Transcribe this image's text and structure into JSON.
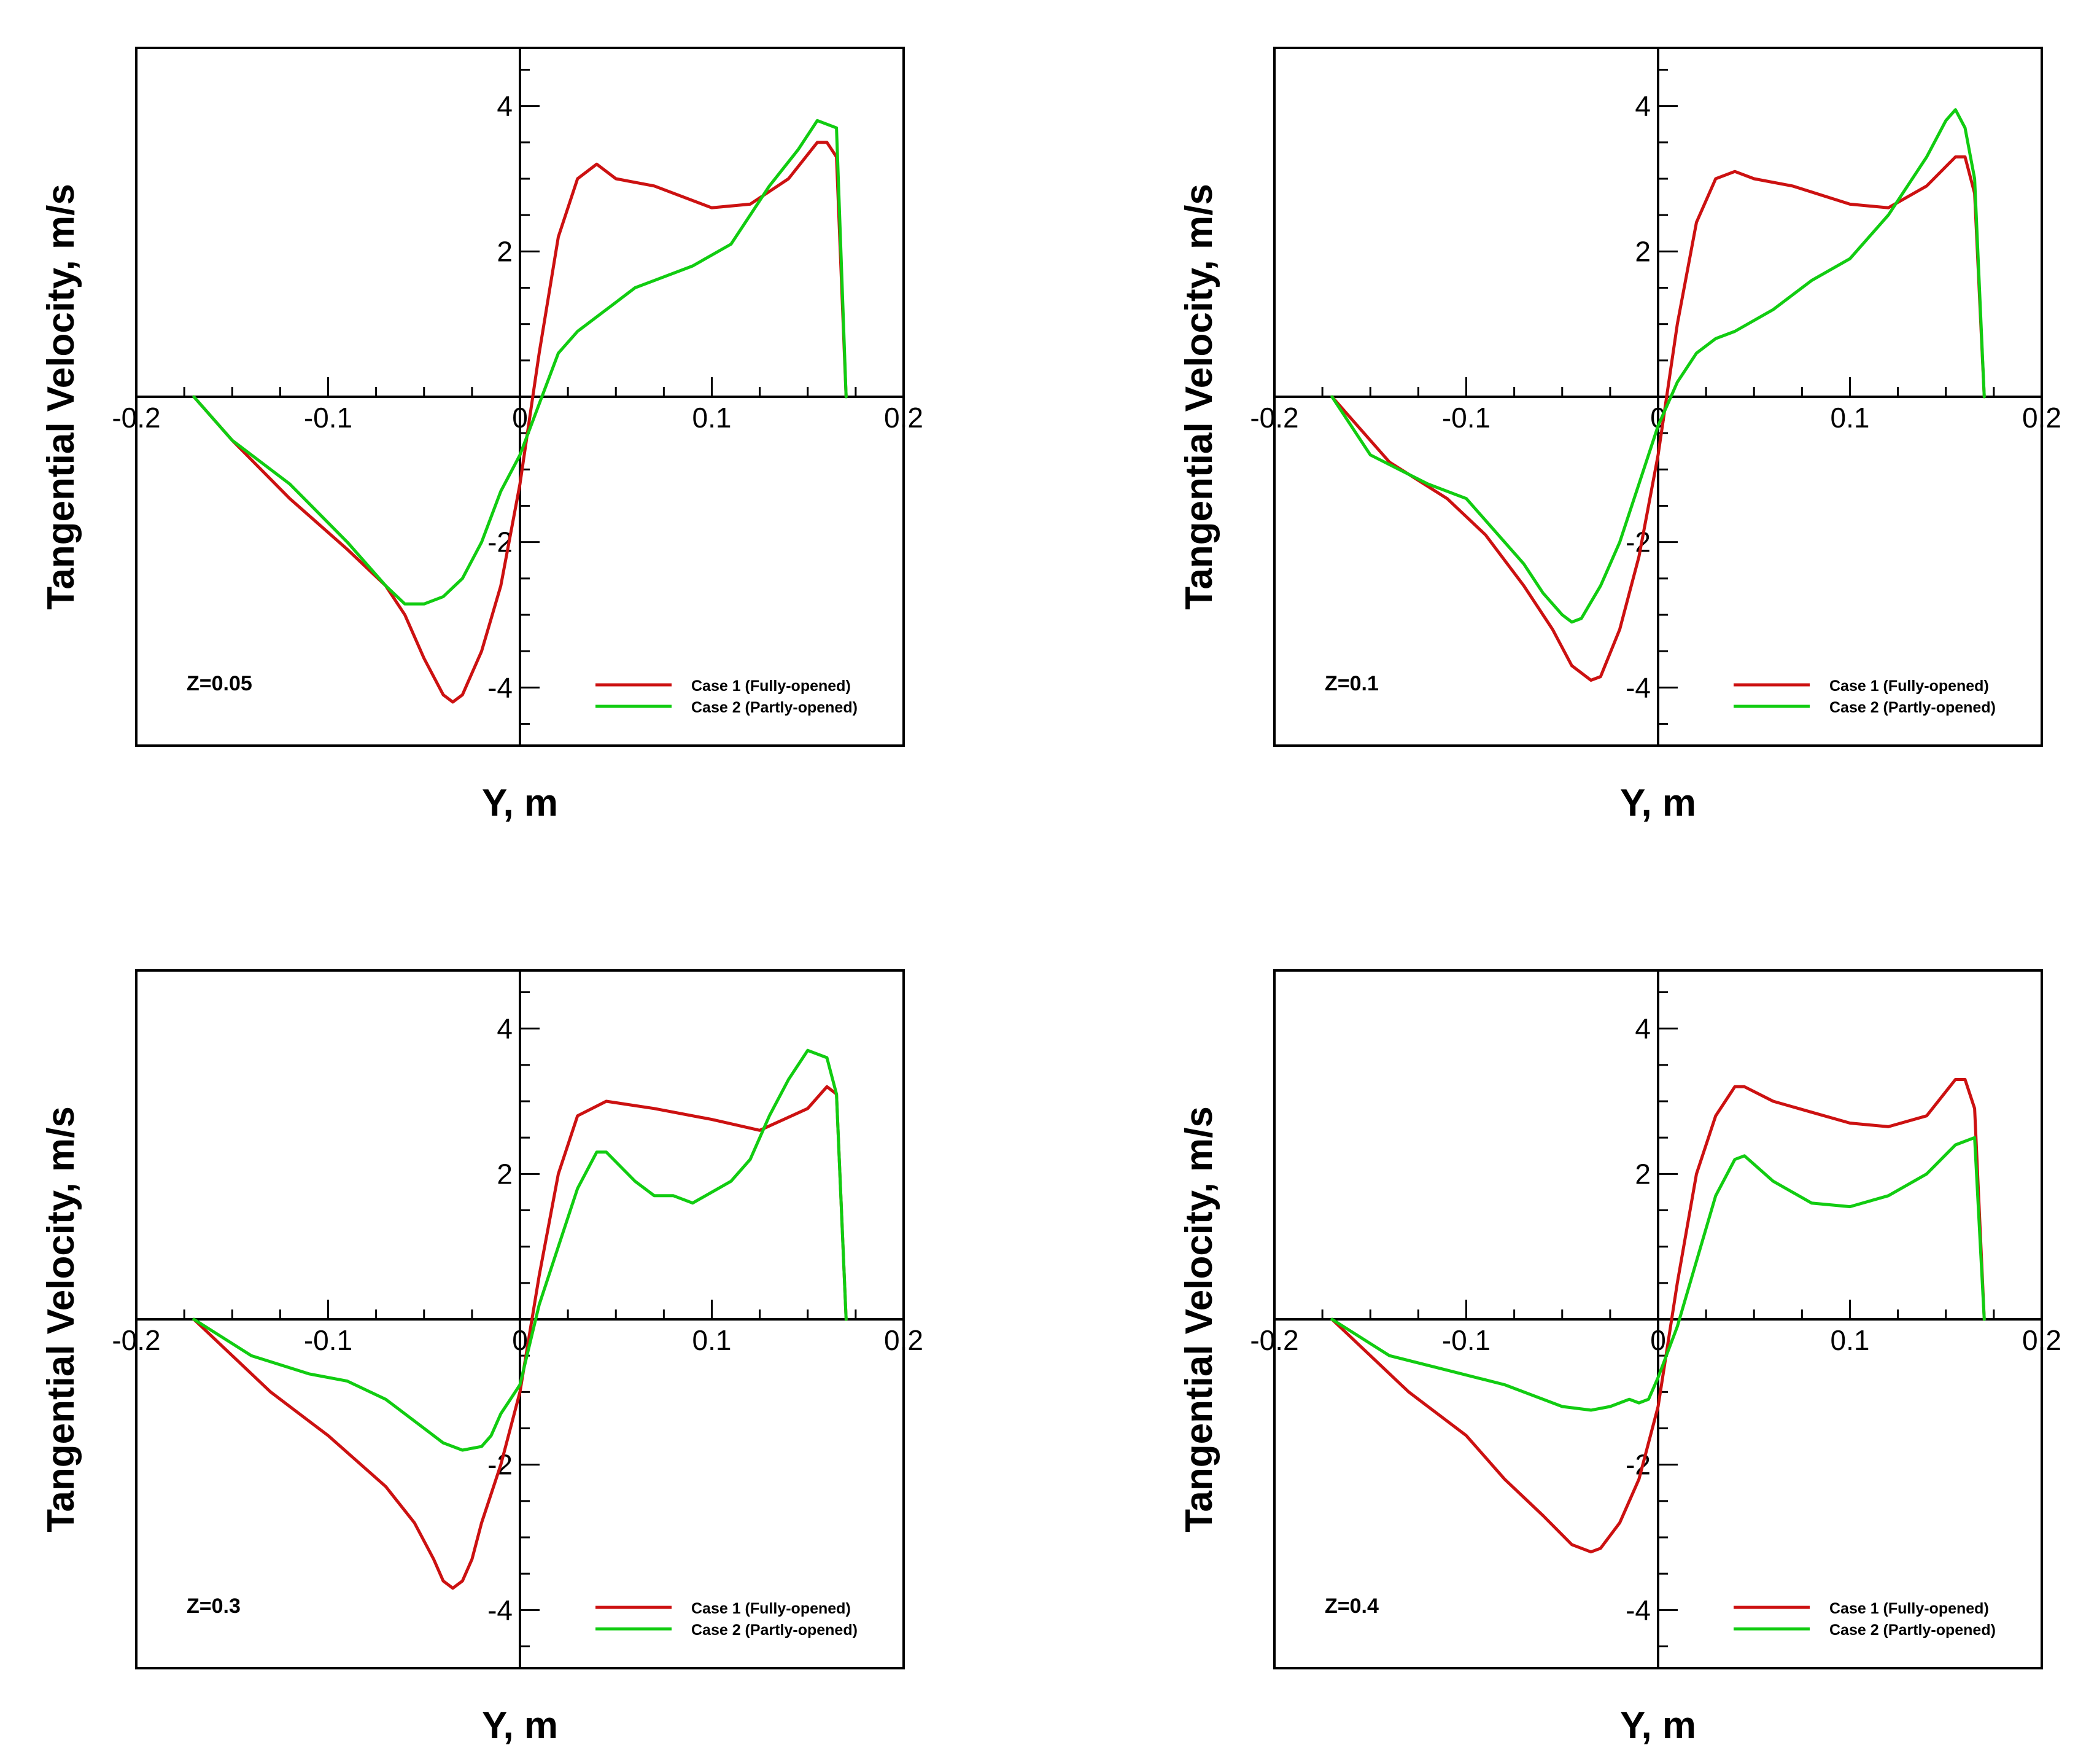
{
  "colors": {
    "case1": "#cc1111",
    "case2": "#11cc11",
    "axes": "#000000"
  },
  "chart_data": [
    {
      "type": "line",
      "annotation": "Z=0.05",
      "xlabel": "Y, m",
      "ylabel": "Tangential Velocity, m/s",
      "xlim": [
        -0.2,
        0.2
      ],
      "ylim": [
        -4.8,
        4.8
      ],
      "xticks": [
        -0.2,
        -0.1,
        0,
        0.1,
        0.2
      ],
      "xtick_labels": [
        "-0.2",
        "-0.1",
        "0",
        "0.1",
        "0.2"
      ],
      "yticks": [
        4,
        2,
        -2,
        -4
      ],
      "ytick_labels": [
        "4",
        "2",
        "-2",
        "-4"
      ],
      "legend": [
        "Case 1 (Fully-opened)",
        "Case 2 (Partly-opened)"
      ],
      "series": [
        {
          "name": "Case 1 (Fully-opened)",
          "color": "#cc1111",
          "x": [
            -0.17,
            -0.15,
            -0.12,
            -0.09,
            -0.07,
            -0.06,
            -0.05,
            -0.04,
            -0.035,
            -0.03,
            -0.02,
            -0.01,
            0,
            0.01,
            0.02,
            0.03,
            0.04,
            0.05,
            0.07,
            0.1,
            0.12,
            0.14,
            0.155,
            0.16,
            0.165,
            0.17
          ],
          "y": [
            0,
            -0.6,
            -1.4,
            -2.1,
            -2.6,
            -3.0,
            -3.6,
            -4.1,
            -4.2,
            -4.1,
            -3.5,
            -2.6,
            -1.2,
            0.6,
            2.2,
            3.0,
            3.2,
            3.0,
            2.9,
            2.6,
            2.65,
            3.0,
            3.5,
            3.5,
            3.3,
            0
          ]
        },
        {
          "name": "Case 2 (Partly-opened)",
          "color": "#11cc11",
          "x": [
            -0.17,
            -0.15,
            -0.12,
            -0.09,
            -0.07,
            -0.06,
            -0.05,
            -0.04,
            -0.03,
            -0.02,
            -0.01,
            0,
            0.01,
            0.02,
            0.03,
            0.05,
            0.06,
            0.07,
            0.09,
            0.11,
            0.12,
            0.13,
            0.145,
            0.155,
            0.165,
            0.17
          ],
          "y": [
            0,
            -0.6,
            -1.2,
            -2.0,
            -2.6,
            -2.85,
            -2.85,
            -2.75,
            -2.5,
            -2.0,
            -1.3,
            -0.8,
            -0.1,
            0.6,
            0.9,
            1.3,
            1.5,
            1.6,
            1.8,
            2.1,
            2.5,
            2.9,
            3.4,
            3.8,
            3.7,
            0
          ]
        }
      ]
    },
    {
      "type": "line",
      "annotation": "Z=0.1",
      "xlabel": "Y, m",
      "ylabel": "Tangential Velocity, m/s",
      "xlim": [
        -0.2,
        0.2
      ],
      "ylim": [
        -4.8,
        4.8
      ],
      "xticks": [
        -0.2,
        -0.1,
        0,
        0.1,
        0.2
      ],
      "xtick_labels": [
        "-0.2",
        "-0.1",
        "0",
        "0.1",
        "0.2"
      ],
      "yticks": [
        4,
        2,
        -2,
        -4
      ],
      "ytick_labels": [
        "4",
        "2",
        "-2",
        "-4"
      ],
      "legend": [
        "Case 1 (Fully-opened)",
        "Case 2 (Partly-opened)"
      ],
      "series": [
        {
          "name": "Case 1 (Fully-opened)",
          "color": "#cc1111",
          "x": [
            -0.17,
            -0.14,
            -0.11,
            -0.09,
            -0.07,
            -0.055,
            -0.045,
            -0.035,
            -0.03,
            -0.02,
            -0.01,
            0,
            0.01,
            0.02,
            0.03,
            0.04,
            0.05,
            0.07,
            0.1,
            0.12,
            0.14,
            0.155,
            0.16,
            0.165,
            0.17
          ],
          "y": [
            0,
            -0.9,
            -1.4,
            -1.9,
            -2.6,
            -3.2,
            -3.7,
            -3.9,
            -3.85,
            -3.2,
            -2.2,
            -0.8,
            1.0,
            2.4,
            3.0,
            3.1,
            3.0,
            2.9,
            2.65,
            2.6,
            2.9,
            3.3,
            3.3,
            2.8,
            0
          ]
        },
        {
          "name": "Case 2 (Partly-opened)",
          "color": "#11cc11",
          "x": [
            -0.17,
            -0.15,
            -0.12,
            -0.1,
            -0.09,
            -0.07,
            -0.06,
            -0.05,
            -0.045,
            -0.04,
            -0.03,
            -0.02,
            -0.01,
            0,
            0.01,
            0.02,
            0.03,
            0.04,
            0.06,
            0.08,
            0.1,
            0.12,
            0.14,
            0.15,
            0.155,
            0.16,
            0.165,
            0.17
          ],
          "y": [
            0,
            -0.8,
            -1.2,
            -1.4,
            -1.7,
            -2.3,
            -2.7,
            -3.0,
            -3.1,
            -3.05,
            -2.6,
            -2.0,
            -1.2,
            -0.4,
            0.2,
            0.6,
            0.8,
            0.9,
            1.2,
            1.6,
            1.9,
            2.5,
            3.3,
            3.8,
            3.95,
            3.7,
            3.0,
            0
          ]
        }
      ]
    },
    {
      "type": "line",
      "annotation": "Z=0.3",
      "xlabel": "Y, m",
      "ylabel": "Tangential Velocity, m/s",
      "xlim": [
        -0.2,
        0.2
      ],
      "ylim": [
        -4.8,
        4.8
      ],
      "xticks": [
        -0.2,
        -0.1,
        0,
        0.1,
        0.2
      ],
      "xtick_labels": [
        "-0.2",
        "-0.1",
        "0",
        "0.1",
        "0.2"
      ],
      "yticks": [
        4,
        2,
        -2,
        -4
      ],
      "ytick_labels": [
        "4",
        "2",
        "-2",
        "-4"
      ],
      "legend": [
        "Case 1 (Fully-opened)",
        "Case 2 (Partly-opened)"
      ],
      "series": [
        {
          "name": "Case 1 (Fully-opened)",
          "color": "#cc1111",
          "x": [
            -0.17,
            -0.13,
            -0.1,
            -0.07,
            -0.055,
            -0.045,
            -0.04,
            -0.035,
            -0.03,
            -0.025,
            -0.02,
            -0.01,
            0,
            0.01,
            0.02,
            0.03,
            0.045,
            0.07,
            0.1,
            0.125,
            0.15,
            0.16,
            0.165,
            0.17
          ],
          "y": [
            0,
            -1.0,
            -1.6,
            -2.3,
            -2.8,
            -3.3,
            -3.6,
            -3.7,
            -3.6,
            -3.3,
            -2.8,
            -2.0,
            -1.0,
            0.6,
            2.0,
            2.8,
            3.0,
            2.9,
            2.75,
            2.6,
            2.9,
            3.2,
            3.1,
            0
          ]
        },
        {
          "name": "Case 2 (Partly-opened)",
          "color": "#11cc11",
          "x": [
            -0.17,
            -0.14,
            -0.11,
            -0.09,
            -0.07,
            -0.05,
            -0.04,
            -0.03,
            -0.02,
            -0.015,
            -0.01,
            -0.005,
            0,
            0.01,
            0.02,
            0.03,
            0.04,
            0.045,
            0.06,
            0.07,
            0.08,
            0.09,
            0.11,
            0.12,
            0.13,
            0.14,
            0.15,
            0.16,
            0.165,
            0.17
          ],
          "y": [
            0,
            -0.5,
            -0.75,
            -0.85,
            -1.1,
            -1.5,
            -1.7,
            -1.8,
            -1.75,
            -1.6,
            -1.3,
            -1.1,
            -0.9,
            0.2,
            1.0,
            1.8,
            2.3,
            2.3,
            1.9,
            1.7,
            1.7,
            1.6,
            1.9,
            2.2,
            2.8,
            3.3,
            3.7,
            3.6,
            3.1,
            0
          ]
        }
      ]
    },
    {
      "type": "line",
      "annotation": "Z=0.4",
      "xlabel": "Y, m",
      "ylabel": "Tangential Velocity, m/s",
      "xlim": [
        -0.2,
        0.2
      ],
      "ylim": [
        -4.8,
        4.8
      ],
      "xticks": [
        -0.2,
        -0.1,
        0,
        0.1,
        0.2
      ],
      "xtick_labels": [
        "-0.2",
        "-0.1",
        "0",
        "0.1",
        "0.2"
      ],
      "yticks": [
        4,
        2,
        -2,
        -4
      ],
      "ytick_labels": [
        "4",
        "2",
        "-2",
        "-4"
      ],
      "legend": [
        "Case 1 (Fully-opened)",
        "Case 2 (Partly-opened)"
      ],
      "series": [
        {
          "name": "Case 1 (Fully-opened)",
          "color": "#cc1111",
          "x": [
            -0.17,
            -0.13,
            -0.1,
            -0.08,
            -0.06,
            -0.045,
            -0.035,
            -0.03,
            -0.02,
            -0.01,
            0,
            0.01,
            0.02,
            0.03,
            0.04,
            0.045,
            0.06,
            0.08,
            0.1,
            0.12,
            0.14,
            0.155,
            0.16,
            0.165,
            0.17
          ],
          "y": [
            0,
            -1.0,
            -1.6,
            -2.2,
            -2.7,
            -3.1,
            -3.2,
            -3.15,
            -2.8,
            -2.2,
            -1.2,
            0.5,
            2.0,
            2.8,
            3.2,
            3.2,
            3.0,
            2.85,
            2.7,
            2.65,
            2.8,
            3.3,
            3.3,
            2.9,
            0
          ]
        },
        {
          "name": "Case 2 (Partly-opened)",
          "color": "#11cc11",
          "x": [
            -0.17,
            -0.14,
            -0.11,
            -0.08,
            -0.05,
            -0.035,
            -0.025,
            -0.015,
            -0.01,
            -0.005,
            0,
            0.01,
            0.02,
            0.03,
            0.04,
            0.045,
            0.06,
            0.08,
            0.1,
            0.12,
            0.14,
            0.155,
            0.165,
            0.17
          ],
          "y": [
            0,
            -0.5,
            -0.7,
            -0.9,
            -1.2,
            -1.25,
            -1.2,
            -1.1,
            -1.15,
            -1.1,
            -0.8,
            -0.1,
            0.8,
            1.7,
            2.2,
            2.25,
            1.9,
            1.6,
            1.55,
            1.7,
            2.0,
            2.4,
            2.5,
            0
          ]
        }
      ]
    }
  ]
}
